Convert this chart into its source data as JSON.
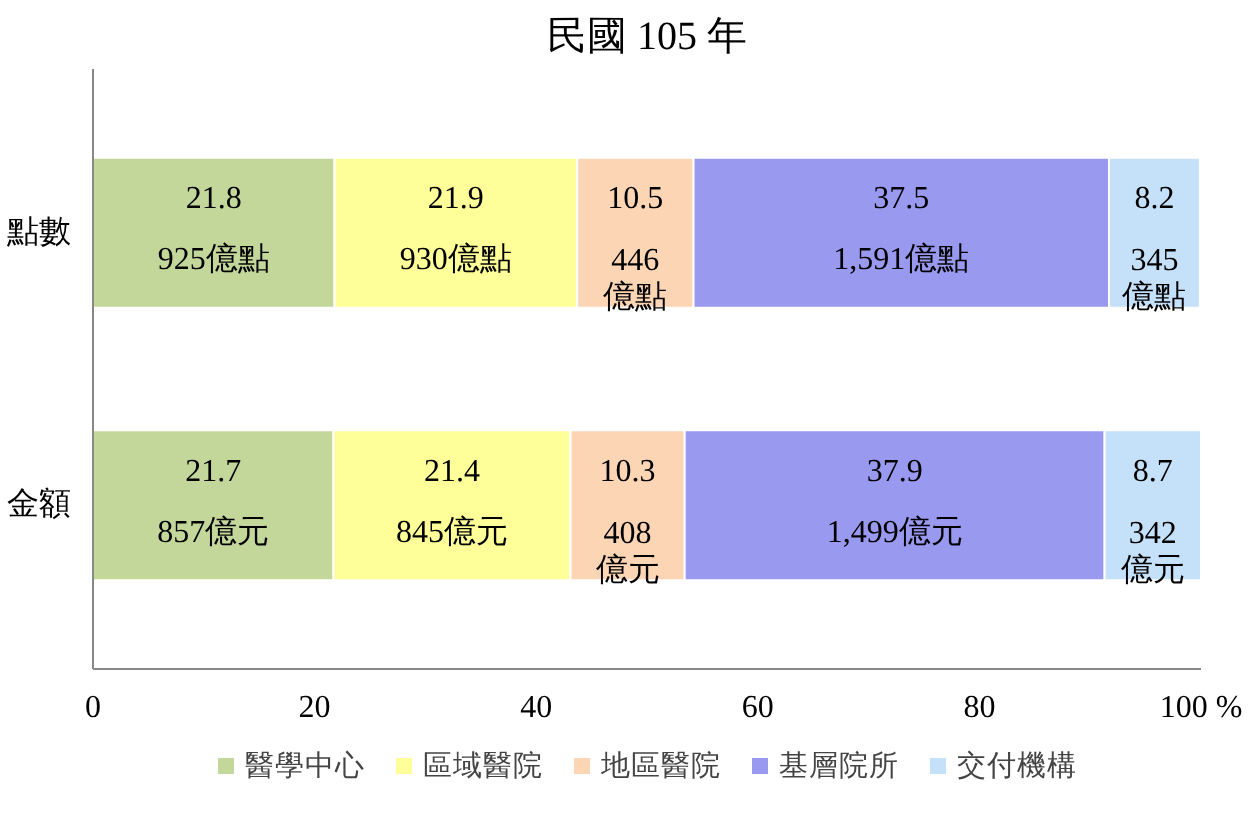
{
  "chart_data": {
    "type": "bar",
    "orientation": "horizontal",
    "stacked": true,
    "title": "民國 105 年",
    "categories": [
      "點數",
      "金額"
    ],
    "series": [
      {
        "name": "醫學中心",
        "color": "#c4d79b",
        "values": [
          21.8,
          21.7
        ]
      },
      {
        "name": "區域醫院",
        "color": "#ffff99",
        "values": [
          21.9,
          21.4
        ]
      },
      {
        "name": "地區醫院",
        "color": "#fcd5b4",
        "values": [
          10.5,
          10.3
        ]
      },
      {
        "name": "基層院所",
        "color": "#9999f0",
        "values": [
          37.5,
          37.9
        ]
      },
      {
        "name": "交付機構",
        "color": "#c5e0f9",
        "values": [
          8.2,
          8.7
        ]
      }
    ],
    "data_labels": true,
    "annotations": [
      "925億點",
      "857億元",
      "930億點",
      "845億元",
      "446\n億點",
      "408\n億元",
      "1,591億點",
      "1,499億元",
      "345\n億點",
      "342\n億元"
    ],
    "xlim": [
      0,
      100
    ],
    "xticks": [
      0,
      20,
      40,
      60,
      80,
      {
        "value": 100,
        "label": "100 %"
      }
    ],
    "legend": "bottom"
  }
}
